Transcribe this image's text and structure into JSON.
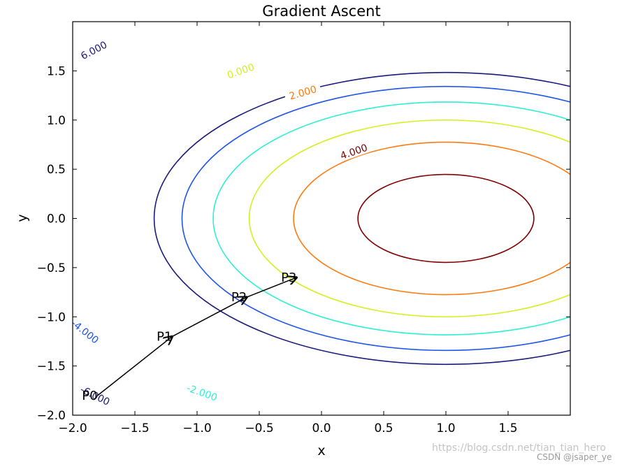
{
  "chart_data": {
    "type": "contour",
    "title": "Gradient Ascent",
    "xlabel": "x",
    "ylabel": "y",
    "xlim": [
      -2.0,
      2.0
    ],
    "ylim": [
      -2.0,
      2.0
    ],
    "xticks": [
      "−2.0",
      "−1.5",
      "−1.0",
      "−0.5",
      "0.0",
      "0.5",
      "1.0",
      "1.5"
    ],
    "yticks": [
      "−2.0",
      "−1.5",
      "−1.0",
      "−0.5",
      "0.0",
      "0.5",
      "1.0",
      "1.5"
    ],
    "levels": [
      {
        "label": "-6.000",
        "value": -6,
        "color": "#1a1a7a"
      },
      {
        "label": "-4.000",
        "value": -4,
        "color": "#1f55e8"
      },
      {
        "label": "-2.000",
        "value": -2,
        "color": "#2ff0d2"
      },
      {
        "label": "0.000",
        "value": 0,
        "color": "#d4f020"
      },
      {
        "label": "2.000",
        "value": 2,
        "color": "#ff7a10"
      },
      {
        "label": "4.000",
        "value": 4,
        "color": "#800000"
      }
    ],
    "level_label_points": [
      {
        "label": "6.000",
        "x": -1.83,
        "y": 1.71
      },
      {
        "label": "0.000",
        "x": -0.65,
        "y": 1.5
      },
      {
        "label": "2.000",
        "x": -0.15,
        "y": 1.28
      },
      {
        "label": "4.000",
        "x": 0.26,
        "y": 0.68
      },
      {
        "label": "-4.000",
        "x": -1.9,
        "y": -1.15
      },
      {
        "label": "-2.000",
        "x": -0.96,
        "y": -1.77
      },
      {
        "label": "-6.000",
        "x": -1.82,
        "y": -1.8
      }
    ],
    "path": [
      {
        "label": "P0",
        "x": -1.8,
        "y": -1.8
      },
      {
        "label": "P1",
        "x": -1.2,
        "y": -1.2
      },
      {
        "label": "P2",
        "x": -0.6,
        "y": -0.8
      },
      {
        "label": "P3",
        "x": -0.2,
        "y": -0.6
      }
    ]
  },
  "watermark": {
    "url": "https://blog.csdn.net/tian_tian_hero",
    "credit": "CSDN @jsaper_ye"
  }
}
